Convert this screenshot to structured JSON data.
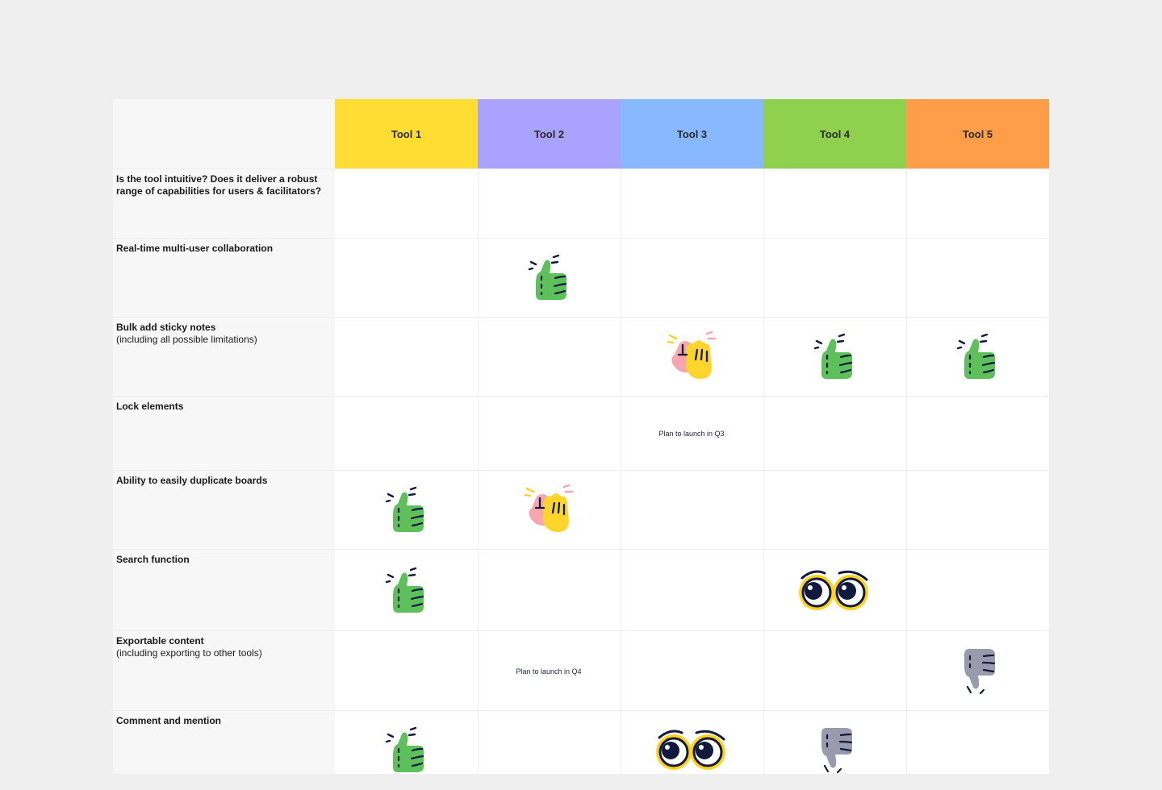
{
  "tools": [
    {
      "label": "Tool 1",
      "color": "#ffdd33"
    },
    {
      "label": "Tool 2",
      "color": "#a9a2ff"
    },
    {
      "label": "Tool 3",
      "color": "#88b8ff"
    },
    {
      "label": "Tool 4",
      "color": "#8fd14f"
    },
    {
      "label": "Tool 5",
      "color": "#ff9d48"
    }
  ],
  "rows": [
    {
      "title": "Is the tool intuitive? Does it deliver a robust range of capabilities for users & facilitators?",
      "subtitle": "",
      "cells": [
        null,
        null,
        null,
        null,
        null
      ]
    },
    {
      "title": "Real-time multi-user collaboration",
      "subtitle": "",
      "cells": [
        null,
        {
          "type": "sticker",
          "icon": "thumbs-up-icon"
        },
        null,
        null,
        null
      ]
    },
    {
      "title": "Bulk add sticky notes",
      "subtitle": "(including all possible limitations)",
      "cells": [
        null,
        null,
        {
          "type": "sticker",
          "icon": "high-five-icon"
        },
        {
          "type": "sticker",
          "icon": "thumbs-up-icon"
        },
        {
          "type": "sticker",
          "icon": "thumbs-up-icon"
        }
      ]
    },
    {
      "title": "Lock elements",
      "subtitle": "",
      "cells": [
        null,
        null,
        {
          "type": "text",
          "text": "Plan to launch in Q3"
        },
        null,
        null
      ]
    },
    {
      "title": "Ability to easily duplicate boards",
      "subtitle": "",
      "cells": [
        {
          "type": "sticker",
          "icon": "thumbs-up-icon"
        },
        {
          "type": "sticker",
          "icon": "high-five-icon"
        },
        null,
        null,
        null
      ]
    },
    {
      "title": "Search function",
      "subtitle": "",
      "cells": [
        {
          "type": "sticker",
          "icon": "thumbs-up-icon"
        },
        null,
        null,
        {
          "type": "sticker",
          "icon": "eyes-icon"
        },
        null
      ]
    },
    {
      "title": "Exportable content",
      "subtitle": "(including exporting to other tools)",
      "cells": [
        null,
        {
          "type": "text",
          "text": "Plan to launch in Q4"
        },
        null,
        null,
        {
          "type": "sticker",
          "icon": "thumbs-down-icon"
        }
      ]
    },
    {
      "title": "Comment and mention",
      "subtitle": "",
      "cells": [
        {
          "type": "sticker",
          "icon": "thumbs-up-icon"
        },
        null,
        {
          "type": "sticker",
          "icon": "eyes-icon"
        },
        {
          "type": "sticker",
          "icon": "thumbs-down-icon"
        },
        null
      ]
    }
  ]
}
